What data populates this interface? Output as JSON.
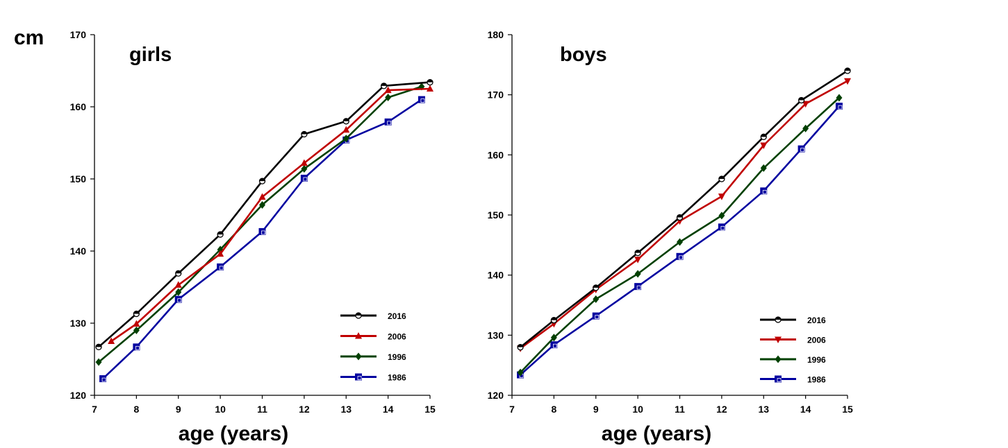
{
  "y_unit_label": "cm",
  "chart_data": [
    {
      "type": "line",
      "title": "girls",
      "xlabel": "age (years)",
      "ylabel": "cm",
      "xlim": [
        7,
        15
      ],
      "ylim": [
        120,
        170
      ],
      "x_ticks": [
        "7",
        "8",
        "9",
        "10",
        "11",
        "12",
        "13",
        "14",
        "15"
      ],
      "y_ticks": [
        "120",
        "130",
        "140",
        "150",
        "160",
        "170"
      ],
      "grid": false,
      "legend_position": "bottom-right",
      "series": [
        {
          "name": "2016",
          "color": "#000000",
          "marker": "circle-open",
          "x": [
            7.1,
            8,
            9,
            10,
            11,
            12,
            13,
            13.9,
            15
          ],
          "values": [
            126.7,
            131.3,
            136.9,
            142.3,
            149.7,
            156.2,
            158.0,
            162.9,
            163.4
          ]
        },
        {
          "name": "2006",
          "color": "#c00000",
          "marker": "triangle-up",
          "x": [
            7.4,
            8,
            9,
            10,
            11,
            12,
            13,
            14,
            15
          ],
          "values": [
            127.5,
            129.9,
            135.3,
            139.6,
            147.5,
            152.2,
            156.8,
            162.3,
            162.5
          ]
        },
        {
          "name": "1996",
          "color": "#004000",
          "marker": "diamond",
          "x": [
            7.1,
            8,
            9,
            10,
            11,
            12,
            13,
            14,
            14.8
          ],
          "values": [
            124.6,
            129.0,
            134.3,
            140.2,
            146.4,
            151.4,
            155.6,
            161.3,
            162.8
          ]
        },
        {
          "name": "1986",
          "color": "#0000a0",
          "marker": "square",
          "x": [
            7.2,
            8,
            9,
            10,
            11,
            12,
            13,
            14,
            14.8
          ],
          "values": [
            122.3,
            126.7,
            133.3,
            137.8,
            142.7,
            150.1,
            155.4,
            157.9,
            161.0
          ]
        }
      ]
    },
    {
      "type": "line",
      "title": "boys",
      "xlabel": "age (years)",
      "ylabel": "cm",
      "xlim": [
        7,
        15
      ],
      "ylim": [
        120,
        180
      ],
      "x_ticks": [
        "7",
        "8",
        "9",
        "10",
        "11",
        "12",
        "13",
        "14",
        "15"
      ],
      "y_ticks": [
        "120",
        "130",
        "140",
        "150",
        "160",
        "170",
        "180"
      ],
      "grid": false,
      "legend_position": "bottom-right",
      "series": [
        {
          "name": "2016",
          "color": "#000000",
          "marker": "circle-open",
          "x": [
            7.2,
            8,
            9,
            10,
            11,
            12,
            13,
            13.9,
            15
          ],
          "values": [
            128.0,
            132.5,
            137.9,
            143.7,
            149.6,
            156.0,
            163.0,
            169.1,
            174.0
          ]
        },
        {
          "name": "2006",
          "color": "#c00000",
          "marker": "triangle-down",
          "x": [
            7.2,
            8,
            9,
            10,
            11,
            12,
            13,
            14,
            15
          ],
          "values": [
            127.8,
            131.9,
            137.6,
            142.6,
            149.0,
            153.1,
            161.6,
            168.5,
            172.3
          ]
        },
        {
          "name": "1996",
          "color": "#004000",
          "marker": "diamond",
          "x": [
            7.2,
            8,
            9,
            10,
            11,
            12,
            13,
            14,
            14.8
          ],
          "values": [
            123.8,
            129.6,
            136.0,
            140.2,
            145.5,
            149.9,
            157.8,
            164.4,
            169.5
          ]
        },
        {
          "name": "1986",
          "color": "#0000a0",
          "marker": "square",
          "x": [
            7.2,
            8,
            9,
            10,
            11,
            12,
            13,
            13.9,
            14.8
          ],
          "values": [
            123.4,
            128.4,
            133.2,
            138.1,
            143.1,
            148.0,
            154.0,
            161.0,
            168.1
          ]
        }
      ]
    }
  ]
}
